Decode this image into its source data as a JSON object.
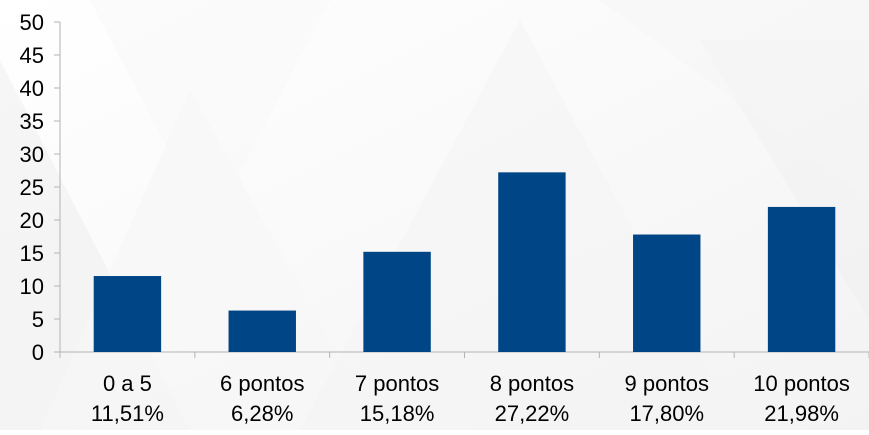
{
  "chart_data": {
    "type": "bar",
    "title": "",
    "xlabel": "",
    "ylabel": "",
    "categories": [
      "0 a 5",
      "6 pontos",
      "7 pontos",
      "8 pontos",
      "9 pontos",
      "10 pontos"
    ],
    "data_labels": [
      "11,51%",
      "6,28%",
      "15,18%",
      "27,22%",
      "17,80%",
      "21,98%"
    ],
    "values": [
      11.51,
      6.28,
      15.18,
      27.22,
      17.8,
      21.98
    ],
    "ylim": [
      0,
      50
    ],
    "yticks": [
      0,
      5,
      10,
      15,
      20,
      25,
      30,
      35,
      40,
      45,
      50
    ],
    "grid": false,
    "legend": "none",
    "bar_color": "#004586"
  }
}
